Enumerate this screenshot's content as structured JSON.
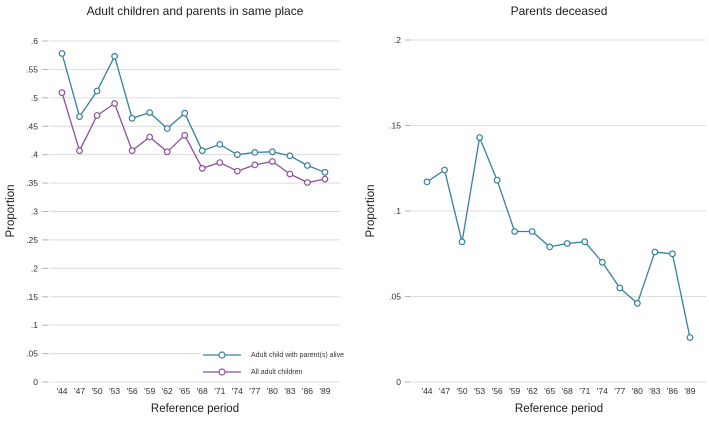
{
  "figure": {
    "background": "#ffffff",
    "grid_color": "#dcdcdc",
    "tick_color": "#b5b5b5",
    "text_color": "#303030"
  },
  "chart_data": [
    {
      "type": "line",
      "title": "Adult children and parents in same place",
      "xlabel": "Reference period",
      "ylabel": "Proportion",
      "categories": [
        "'44",
        "'47",
        "'50",
        "'53",
        "'56",
        "'59",
        "'62",
        "'65",
        "'68",
        "'71",
        "'74",
        "'77",
        "'80",
        "'83",
        "'86",
        "'89"
      ],
      "ylim": [
        0,
        0.6
      ],
      "ytick_interval": 0.05,
      "ytick_labels": [
        "0",
        ".05",
        ".1",
        ".15",
        ".2",
        ".25",
        ".3",
        ".35",
        ".4",
        ".45",
        ".5",
        ".55",
        ".6"
      ],
      "grid": true,
      "legend_position": "inside-bottom-right",
      "series": [
        {
          "name": "Adult child with parent(s) alive",
          "color": "#35809f",
          "marker": "hollow-circle",
          "values": [
            0.578,
            0.467,
            0.512,
            0.573,
            0.464,
            0.474,
            0.446,
            0.473,
            0.407,
            0.418,
            0.4,
            0.404,
            0.405,
            0.398,
            0.381,
            0.369
          ]
        },
        {
          "name": "All adult children",
          "color": "#8e4f9c",
          "marker": "hollow-circle",
          "values": [
            0.509,
            0.407,
            0.469,
            0.49,
            0.407,
            0.431,
            0.405,
            0.434,
            0.376,
            0.386,
            0.371,
            0.382,
            0.388,
            0.366,
            0.351,
            0.357
          ]
        }
      ]
    },
    {
      "type": "line",
      "title": "Parents deceased",
      "xlabel": "Reference period",
      "ylabel": "Proportion",
      "categories": [
        "'44",
        "'47",
        "'50",
        "'53",
        "'56",
        "'59",
        "'62",
        "'65",
        "'68",
        "'71",
        "'74",
        "'77",
        "'80",
        "'83",
        "'86",
        "'89"
      ],
      "ylim": [
        0,
        0.2
      ],
      "ytick_interval": 0.05,
      "ytick_labels": [
        "0",
        ".05",
        ".1",
        ".15",
        ".2"
      ],
      "grid": true,
      "legend_position": "none",
      "series": [
        {
          "name": "Parents deceased",
          "color": "#35809f",
          "marker": "hollow-circle",
          "values": [
            0.117,
            0.124,
            0.082,
            0.143,
            0.118,
            0.088,
            0.088,
            0.079,
            0.081,
            0.082,
            0.07,
            0.055,
            0.046,
            0.076,
            0.075,
            0.026
          ]
        }
      ]
    }
  ]
}
